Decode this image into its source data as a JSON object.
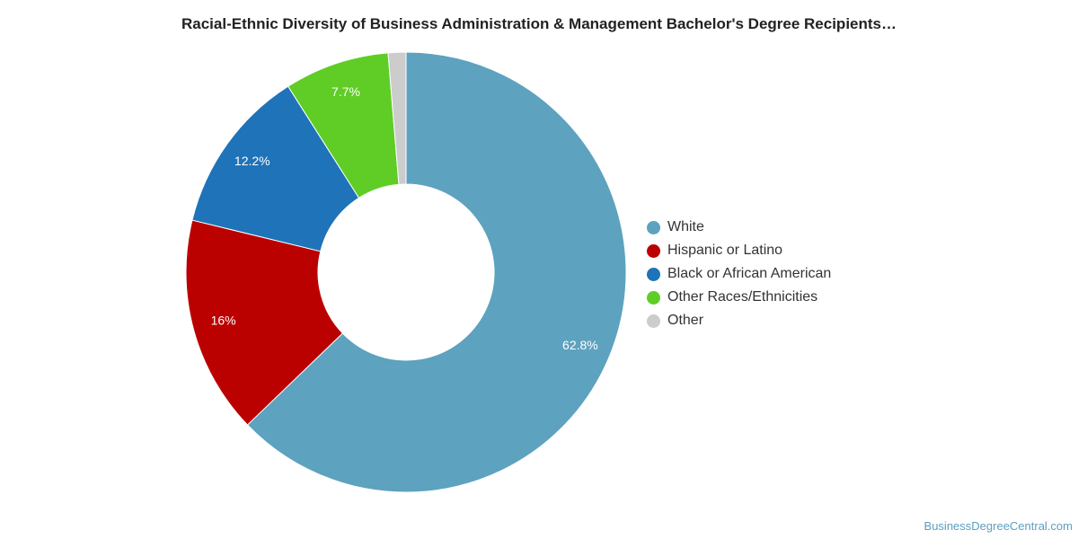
{
  "chart_data": {
    "type": "pie",
    "title": "Racial-Ethnic Diversity of Business Administration & Management Bachelor's Degree Recipients…",
    "donut": true,
    "legend_position": "right",
    "slices": [
      {
        "label": "White",
        "value": 62.8,
        "value_label": "62.8%",
        "color": "#5da2bf"
      },
      {
        "label": "Hispanic or Latino",
        "value": 16.0,
        "value_label": "16%",
        "color": "#bb0000"
      },
      {
        "label": "Black or African American",
        "value": 12.2,
        "value_label": "12.2%",
        "color": "#1f73b8"
      },
      {
        "label": "Other Races/Ethnicities",
        "value": 7.7,
        "value_label": "7.7%",
        "color": "#5fcd26"
      },
      {
        "label": "Other",
        "value": 1.3,
        "value_label": "",
        "color": "#cccccc"
      }
    ]
  },
  "source": "BusinessDegreeCentral.com"
}
